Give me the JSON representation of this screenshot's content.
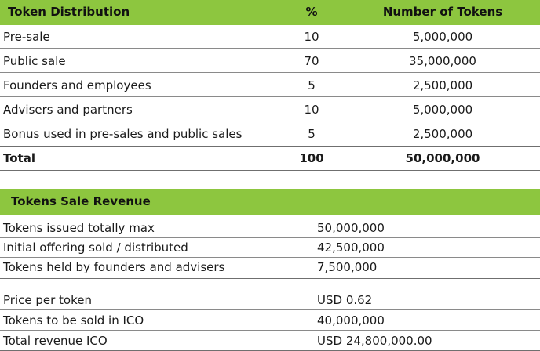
{
  "distribution": {
    "headers": {
      "label": "Token Distribution",
      "pct": "%",
      "tokens": "Number of Tokens"
    },
    "rows": [
      {
        "label": "Pre-sale",
        "pct": "10",
        "tokens": "5,000,000"
      },
      {
        "label": "Public sale",
        "pct": "70",
        "tokens": "35,000,000"
      },
      {
        "label": "Founders and employees",
        "pct": "5",
        "tokens": "2,500,000"
      },
      {
        "label": "Advisers and partners",
        "pct": "10",
        "tokens": "5,000,000"
      },
      {
        "label": "Bonus used in pre-sales and public sales",
        "pct": "5",
        "tokens": "2,500,000"
      }
    ],
    "total": {
      "label": "Total",
      "pct": "100",
      "tokens": "50,000,000"
    }
  },
  "revenue": {
    "header": "Tokens Sale Revenue",
    "rows": [
      {
        "label": "Tokens issued totally max",
        "value": "50,000,000"
      },
      {
        "label": "Initial offering sold / distributed",
        "value": "42,500,000"
      },
      {
        "label": "Tokens held by founders and advisers",
        "value": "7,500,000"
      },
      {
        "label": "Price per token",
        "value": "USD 0.62"
      },
      {
        "label": "Tokens to be sold in ICO",
        "value": "40,000,000"
      },
      {
        "label": "Total revenue ICO",
        "value": "USD 24,800,000.00"
      }
    ]
  },
  "colors": {
    "header_green": "#8dc63f",
    "rule": "#6f6f6f"
  }
}
